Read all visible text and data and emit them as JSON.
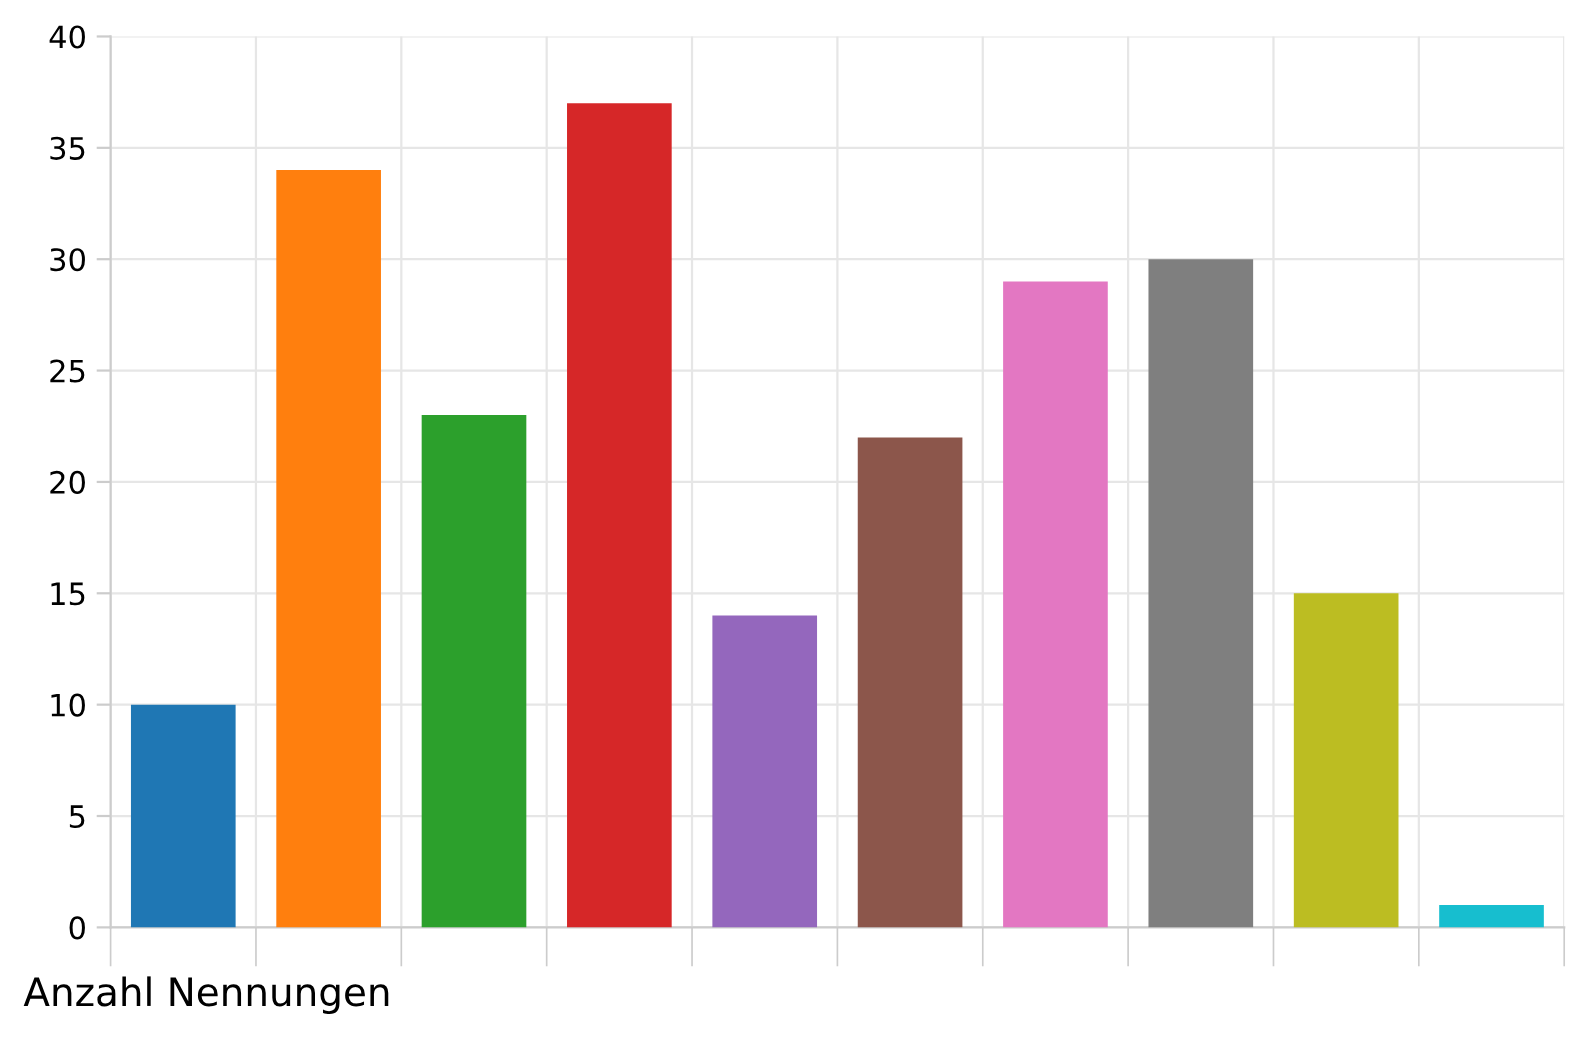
{
  "chart_data": {
    "type": "bar",
    "xlabel": "Anzahl Nennungen",
    "categories": [
      null,
      null,
      null,
      null,
      null,
      null,
      null,
      null,
      null,
      null
    ],
    "values": [
      10,
      34,
      23,
      37,
      14,
      22,
      29,
      30,
      15,
      1
    ],
    "colors": [
      "#1f77b4",
      "#ff7f0e",
      "#2ca02c",
      "#d62728",
      "#9467bd",
      "#8c564b",
      "#e377c2",
      "#7f7f7f",
      "#bcbd22",
      "#17becf"
    ],
    "ylim": [
      0,
      40
    ],
    "yticks": [
      0,
      5,
      10,
      15,
      20,
      25,
      30,
      35,
      40
    ],
    "grid": true
  }
}
